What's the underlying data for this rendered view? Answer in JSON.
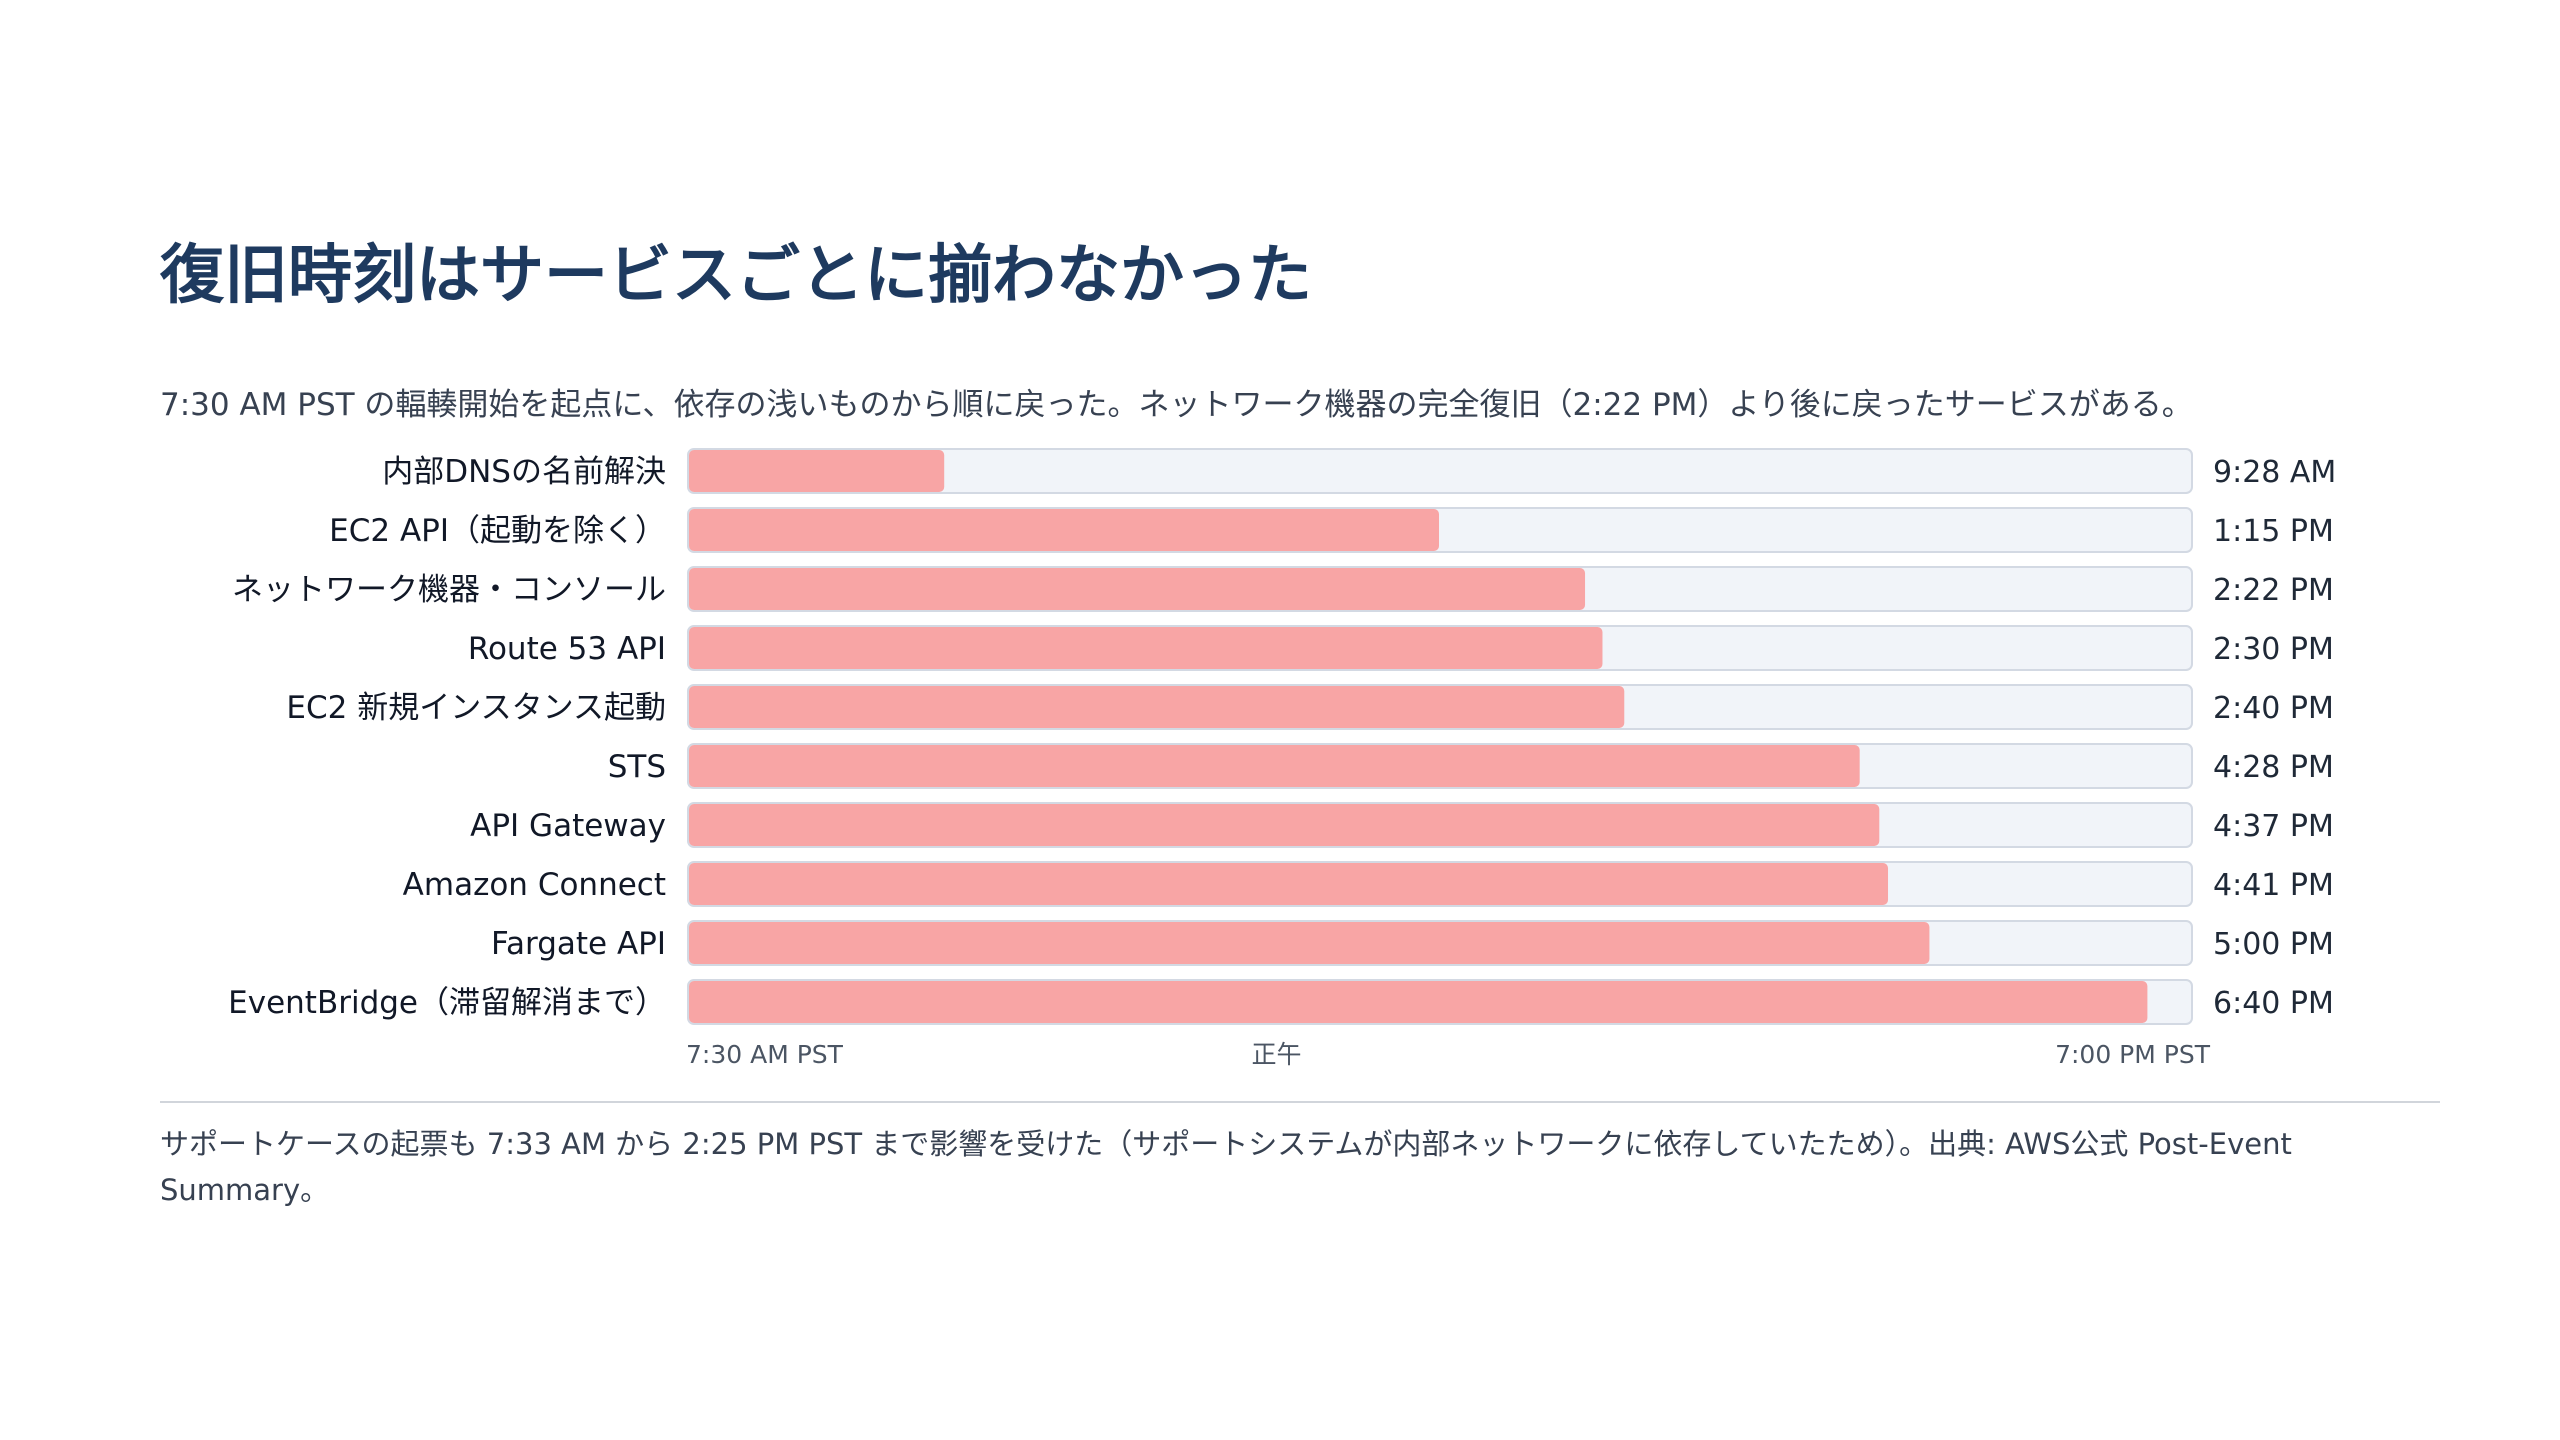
{
  "slide": {
    "title": "復旧時刻はサービスごとに揃わなかった",
    "subtitle": "7:30 AM PST の輻輳開始を起点に、依存の浅いものから順に戻った。ネットワーク機器の完全復旧（2:22 PM）より後に戻ったサービスがある。",
    "footnote": "サポートケースの起票も 7:33 AM から 2:25 PM PST まで影響を受けた（サポートシステムが内部ネットワークに依存していたため）。出典: AWS公式 Post-Event Summary。"
  },
  "colors": {
    "bar_fill": "#f8a5a5",
    "track_fill": "#f1f4f9",
    "track_stroke": "#d3d9e3",
    "title": "#1e3a5f"
  },
  "chart_data": {
    "type": "bar",
    "orientation": "horizontal",
    "x_start": "7:30 AM",
    "x_end": "7:00 PM",
    "x_ticks": [
      "7:30 AM PST",
      "正午",
      "7:00 PM PST"
    ],
    "categories": [
      "内部DNSの名前解決",
      "EC2 API（起動を除く）",
      "ネットワーク機器・コンソール",
      "Route 53 API",
      "EC2 新規インスタンス起動",
      "STS",
      "API Gateway",
      "Amazon Connect",
      "Fargate API",
      "EventBridge（滞留解消まで）"
    ],
    "values": [
      "9:28 AM",
      "1:15 PM",
      "2:22 PM",
      "2:30 PM",
      "2:40 PM",
      "4:28 PM",
      "4:37 PM",
      "4:41 PM",
      "5:00 PM",
      "6:40 PM"
    ]
  }
}
